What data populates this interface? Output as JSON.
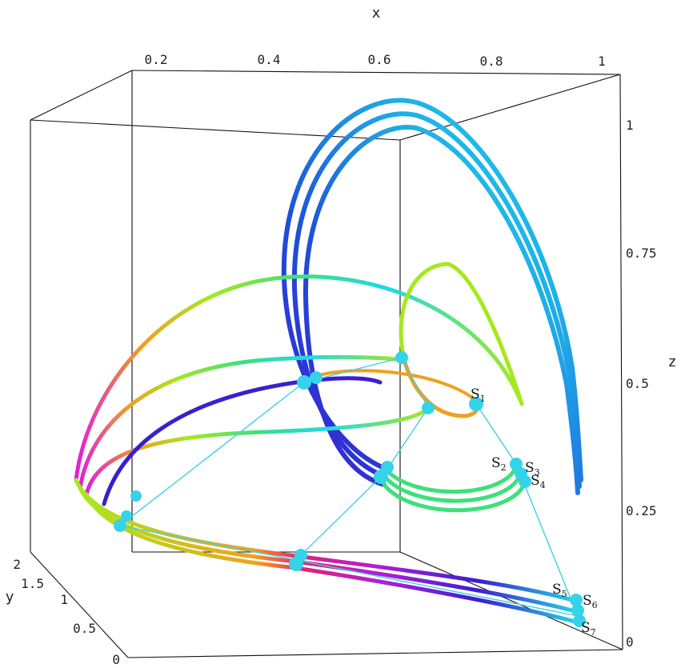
{
  "chart_data": {
    "type": "line",
    "subtype": "3d-parametric-curves",
    "x_axis": {
      "label": "x",
      "ticks": [
        "0.2",
        "0.4",
        "0.6",
        "0.8",
        "1"
      ]
    },
    "y_axis": {
      "label": "y",
      "ticks": [
        "0",
        "0.5",
        "1",
        "1.5",
        "2"
      ]
    },
    "z_axis": {
      "label": "z",
      "ticks": [
        "0",
        "0.25",
        "0.5",
        "0.75",
        "1"
      ]
    },
    "points": [
      {
        "id": "S1",
        "main": "S",
        "sub": "1"
      },
      {
        "id": "S2",
        "main": "S",
        "sub": "2"
      },
      {
        "id": "S3",
        "main": "S",
        "sub": "3"
      },
      {
        "id": "S4",
        "main": "S",
        "sub": "4"
      },
      {
        "id": "S5",
        "main": "S",
        "sub": "5"
      },
      {
        "id": "S6",
        "main": "S",
        "sub": "6"
      },
      {
        "id": "S7",
        "main": "S",
        "sub": "7"
      }
    ],
    "curve_count": 7,
    "colors": {
      "cyan": "#20d8e8",
      "blue": "#1e4fd8",
      "violet": "#5a1fd0",
      "green": "#3ee07a",
      "yellow_green": "#a6e81e",
      "orange": "#f0a020",
      "magenta": "#e01fd8",
      "marker": "#35d3ea"
    }
  }
}
